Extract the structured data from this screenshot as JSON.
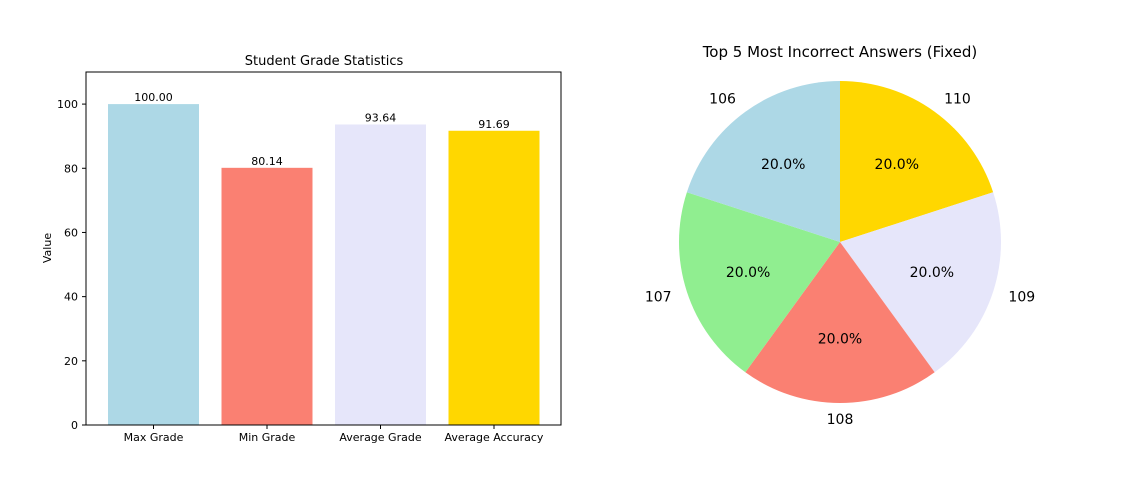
{
  "chart_data": [
    {
      "type": "bar",
      "title": "Student Grade Statistics",
      "xlabel": "",
      "ylabel": "Value",
      "categories": [
        "Max Grade",
        "Min Grade",
        "Average Grade",
        "Average Accuracy"
      ],
      "values": [
        100.0,
        80.14,
        93.64,
        91.69
      ],
      "value_labels": [
        "100.00",
        "80.14",
        "93.64",
        "91.69"
      ],
      "colors": [
        "#add8e6",
        "#fa8072",
        "#e6e6fa",
        "#ffd700"
      ],
      "ylim": [
        0,
        110
      ],
      "yticks": [
        0,
        20,
        40,
        60,
        80,
        100
      ],
      "grid": false
    },
    {
      "type": "pie",
      "title": "Top 5 Most Incorrect Answers (Fixed)",
      "labels": [
        "110",
        "109",
        "108",
        "107",
        "106"
      ],
      "values": [
        20.0,
        20.0,
        20.0,
        20.0,
        20.0
      ],
      "pct_labels": [
        "20.0%",
        "20.0%",
        "20.0%",
        "20.0%",
        "20.0%"
      ],
      "colors": [
        "#ffd700",
        "#e6e6fa",
        "#fa8072",
        "#90ee90",
        "#add8e6"
      ],
      "start_angle_deg": 90,
      "direction": "clockwise"
    }
  ]
}
